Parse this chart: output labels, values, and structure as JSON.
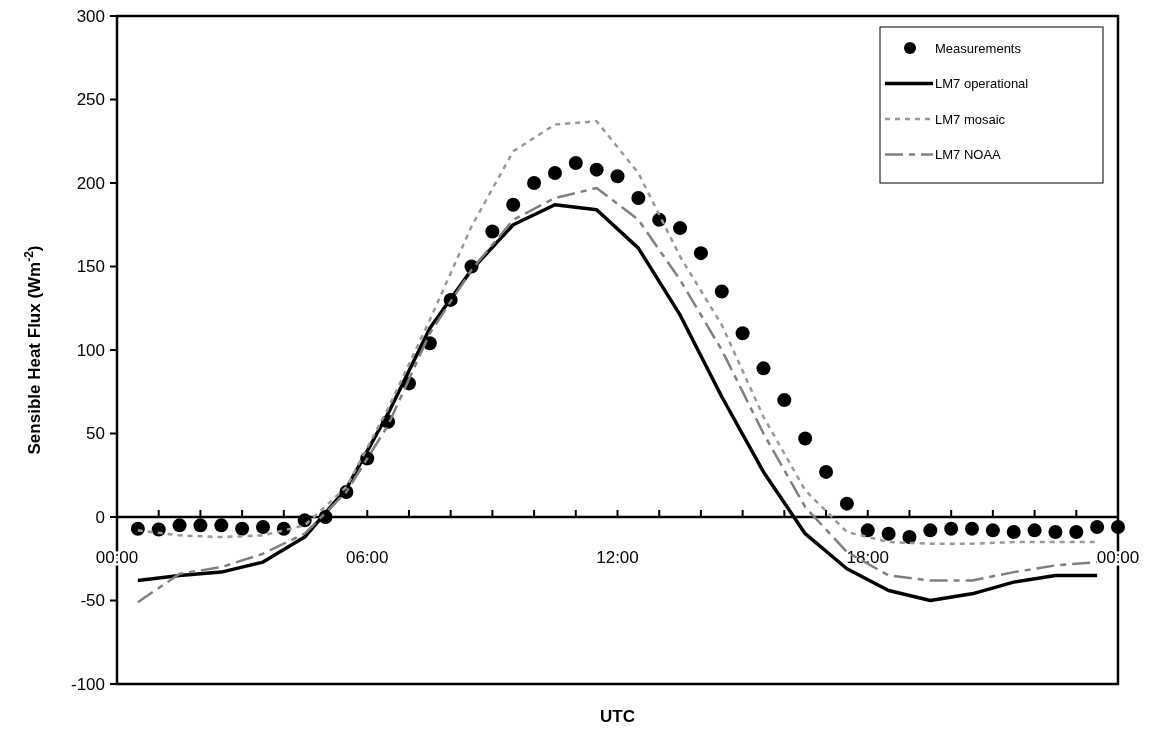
{
  "chart_data": {
    "type": "line",
    "xlabel": "UTC",
    "ylabel": "Sensible Heat Flux (Wm$^{-2}$)",
    "xlim": [
      0,
      24
    ],
    "ylim": [
      -100,
      300
    ],
    "xticks": [
      {
        "value": 0,
        "label": "00:00"
      },
      {
        "value": 1,
        "label": null
      },
      {
        "value": 2,
        "label": null
      },
      {
        "value": 3,
        "label": null
      },
      {
        "value": 4,
        "label": null
      },
      {
        "value": 5,
        "label": null
      },
      {
        "value": 6,
        "label": "06:00"
      },
      {
        "value": 7,
        "label": null
      },
      {
        "value": 8,
        "label": null
      },
      {
        "value": 9,
        "label": null
      },
      {
        "value": 10,
        "label": null
      },
      {
        "value": 11,
        "label": null
      },
      {
        "value": 12,
        "label": "12:00"
      },
      {
        "value": 13,
        "label": null
      },
      {
        "value": 14,
        "label": null
      },
      {
        "value": 15,
        "label": null
      },
      {
        "value": 16,
        "label": null
      },
      {
        "value": 17,
        "label": null
      },
      {
        "value": 18,
        "label": "18:00"
      },
      {
        "value": 19,
        "label": null
      },
      {
        "value": 20,
        "label": null
      },
      {
        "value": 21,
        "label": null
      },
      {
        "value": 22,
        "label": null
      },
      {
        "value": 23,
        "label": null
      },
      {
        "value": 24,
        "label": "00:00"
      }
    ],
    "yticks": [
      -100,
      -50,
      0,
      50,
      100,
      150,
      200,
      250,
      300
    ],
    "grid": false,
    "legend": "top right",
    "series": [
      {
        "name": "Measurements",
        "type": "scatter",
        "marker": "circle",
        "color": "#000000",
        "x": [
          0.5,
          1,
          1.5,
          2,
          2.5,
          3,
          3.5,
          4,
          4.5,
          5,
          5.5,
          6,
          6.5,
          7,
          7.5,
          8,
          8.5,
          9,
          9.5,
          10,
          10.5,
          11,
          11.5,
          12,
          12.5,
          13,
          13.5,
          14,
          14.5,
          15,
          15.5,
          16,
          16.5,
          17,
          17.5,
          18,
          18.5,
          19,
          19.5,
          20,
          20.5,
          21,
          21.5,
          22,
          22.5,
          23,
          23.5,
          24
        ],
        "values": [
          -7,
          -7.5,
          -5,
          -5,
          -5,
          -7,
          -6,
          -7,
          -2,
          0,
          15,
          35,
          57,
          80,
          104,
          130,
          150,
          171,
          187,
          200,
          206,
          212,
          208,
          204,
          191,
          178,
          173,
          158,
          135,
          110,
          89,
          70,
          47,
          27,
          8,
          -8,
          -10,
          -12,
          -8,
          -7,
          -7,
          -8,
          -9,
          -8,
          -9,
          -9,
          -6,
          -6
        ]
      },
      {
        "name": "LM7 operational",
        "line_style": "solid",
        "color": "#000000",
        "x": [
          0.5,
          1.5,
          2.5,
          3.5,
          4.5,
          5.5,
          6.5,
          7.5,
          8.5,
          9.5,
          10.5,
          11.5,
          12.5,
          13.5,
          14.5,
          15.5,
          16.5,
          17.5,
          18.5,
          19.5,
          20.5,
          21.5,
          22.5,
          23.5
        ],
        "values": [
          -38,
          -35,
          -33,
          -27,
          -12,
          17,
          62,
          113,
          148,
          175,
          187,
          184,
          161,
          121,
          72,
          27,
          -10,
          -31,
          -44,
          -50,
          -46,
          -39,
          -35,
          -35
        ]
      },
      {
        "name": "LM7 mosaic",
        "line_style": "dotted",
        "color": "#999999",
        "x": [
          0.5,
          1.5,
          2.5,
          3.5,
          4.5,
          5.5,
          6.5,
          7.5,
          8.5,
          9.5,
          10.5,
          11.5,
          12.5,
          13.5,
          14.5,
          15.5,
          16.5,
          17.5,
          18.5,
          19.5,
          20.5,
          21.5,
          22.5,
          23.5
        ],
        "values": [
          -8,
          -11,
          -12,
          -11,
          -5,
          18,
          65,
          118,
          174,
          219,
          235,
          237,
          206,
          156,
          115,
          60,
          16,
          -9,
          -15,
          -16,
          -16,
          -15,
          -15,
          -15
        ]
      },
      {
        "name": "LM7 NOAA",
        "line_style": "dashed",
        "color": "#808080",
        "x": [
          0.5,
          1.5,
          2.5,
          3.5,
          4.5,
          5.5,
          6.5,
          7.5,
          8.5,
          9.5,
          10.5,
          11.5,
          12.5,
          13.5,
          14.5,
          15.5,
          16.5,
          17.5,
          18.5,
          19.5,
          20.5,
          21.5,
          22.5,
          23.5
        ],
        "values": [
          -51,
          -34,
          -30,
          -22,
          -10,
          15,
          55,
          110,
          148,
          178,
          191,
          197,
          178,
          142,
          100,
          50,
          6,
          -21,
          -35,
          -38,
          -38,
          -33,
          -29,
          -27
        ]
      }
    ]
  }
}
